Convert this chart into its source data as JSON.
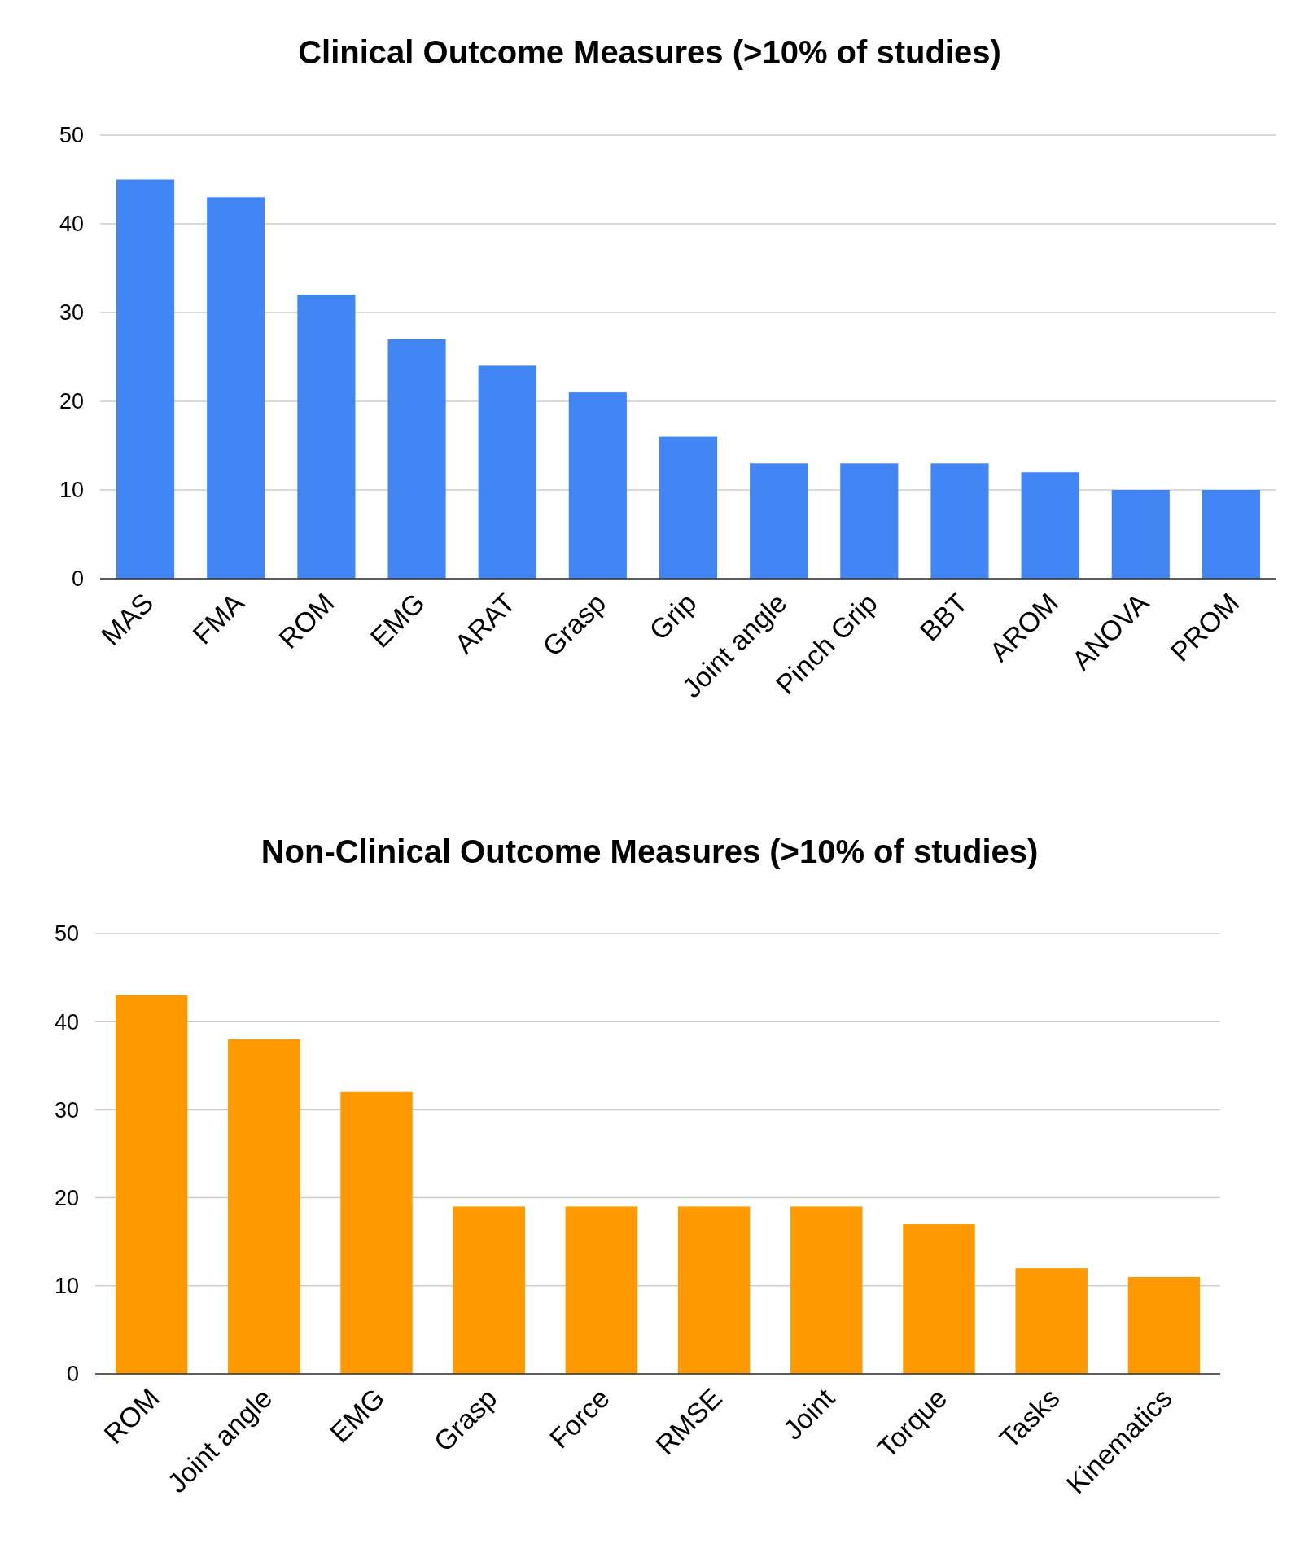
{
  "chart_data": [
    {
      "type": "bar",
      "title": "Clinical Outcome Measures (>10% of studies)",
      "categories": [
        "MAS",
        "FMA",
        "ROM",
        "EMG",
        "ARAT",
        "Grasp",
        "Grip",
        "Joint angle",
        "Pinch Grip",
        "BBT",
        "AROM",
        "ANOVA",
        "PROM"
      ],
      "series": [
        {
          "color": "#4285f4",
          "values": [
            45,
            43,
            32,
            27,
            24,
            21,
            16,
            13,
            13,
            13,
            12,
            10,
            10
          ]
        }
      ],
      "ylim": [
        0,
        50
      ],
      "yticks": [
        0,
        10,
        20,
        30,
        40,
        50
      ],
      "grid": "y"
    },
    {
      "type": "bar",
      "title": "Non-Clinical Outcome Measures (>10% of studies)",
      "categories": [
        "ROM",
        "Joint angle",
        "EMG",
        "Grasp",
        "Force",
        "RMSE",
        "Joint",
        "Torque",
        "Tasks",
        "Kinematics"
      ],
      "series": [
        {
          "color": "#ff9900",
          "values": [
            43,
            38,
            32,
            19,
            19,
            19,
            19,
            17,
            12,
            11
          ]
        }
      ],
      "ylim": [
        0,
        50
      ],
      "yticks": [
        0,
        10,
        20,
        30,
        40,
        50
      ],
      "grid": "y"
    }
  ]
}
